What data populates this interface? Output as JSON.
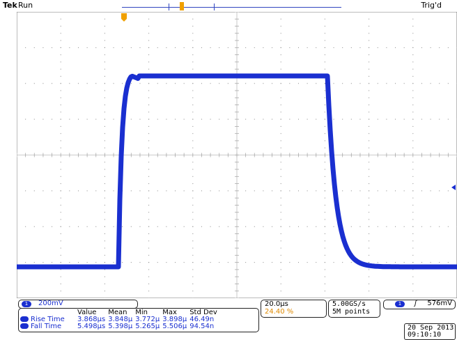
{
  "header": {
    "brand": "Tek",
    "status": "Run",
    "trigger_state": "Trig'd"
  },
  "channel": {
    "number": "1",
    "scale": "200mV",
    "color": "#1a2fd0"
  },
  "measurements": {
    "columns": [
      "Value",
      "Mean",
      "Min",
      "Max",
      "Std Dev"
    ],
    "rows": [
      {
        "name": "Rise Time",
        "value": "3.868µs",
        "mean": "3.848µ",
        "min": "3.772µ",
        "max": "3.898µ",
        "std": "46.49n"
      },
      {
        "name": "Fall Time",
        "value": "5.498µs",
        "mean": "5.398µ",
        "min": "5.265µ",
        "max": "5.506µ",
        "std": "94.54n"
      }
    ]
  },
  "timebase": {
    "per_div": "20.0µs",
    "trigger_pos": "24.40 %"
  },
  "acquisition": {
    "sample_rate": "5.00GS/s",
    "record_length": "5M points"
  },
  "trigger": {
    "source": "1",
    "slope": "ʃ",
    "level": "576mV"
  },
  "datetime": {
    "date": "20 Sep  2013",
    "time": "09:10:10"
  },
  "colors": {
    "trace": "#1a2fd0",
    "grid": "#909090",
    "trigger_marker": "#f0a000"
  }
}
